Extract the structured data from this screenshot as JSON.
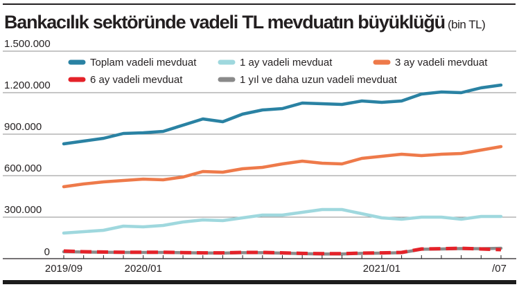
{
  "header": {
    "title": "Bankacılık sektöründe vadeli TL mevduatın büyüklüğü",
    "unit": "(bin TL)"
  },
  "chart_data": {
    "type": "line",
    "title": "Bankacılık sektöründe vadeli TL mevduatın büyüklüğü",
    "subtitle": "(bin TL)",
    "xlabel": "",
    "ylabel": "",
    "ylim": [
      0,
      1500000
    ],
    "grid": true,
    "legend_placement": "top",
    "yticks": [
      {
        "value": 0,
        "label": "0"
      },
      {
        "value": 300000,
        "label": "300.000"
      },
      {
        "value": 600000,
        "label": "600.000"
      },
      {
        "value": 900000,
        "label": "900.000"
      },
      {
        "value": 1200000,
        "label": "1.200.000"
      },
      {
        "value": 1500000,
        "label": "1.500.000"
      }
    ],
    "x": [
      "2019/09",
      "2019/10",
      "2019/11",
      "2019/12",
      "2020/01",
      "2020/02",
      "2020/03",
      "2020/04",
      "2020/05",
      "2020/06",
      "2020/07",
      "2020/08",
      "2020/09",
      "2020/10",
      "2020/11",
      "2020/12",
      "2021/01",
      "2021/02",
      "2021/03",
      "2021/04",
      "2021/05",
      "2021/06",
      "2021/07"
    ],
    "xtick_labels": [
      {
        "index": 0,
        "label": "2019/09"
      },
      {
        "index": 4,
        "label": "2020/01"
      },
      {
        "index": 16,
        "label": "2021/01"
      },
      {
        "index": 22,
        "label": "/07"
      }
    ],
    "series": [
      {
        "name": "Toplam vadeli mevduat",
        "color": "#2a82a3",
        "style": "solid",
        "values": [
          830000,
          850000,
          870000,
          905000,
          910000,
          920000,
          965000,
          1010000,
          990000,
          1045000,
          1075000,
          1085000,
          1125000,
          1120000,
          1115000,
          1140000,
          1130000,
          1140000,
          1190000,
          1205000,
          1200000,
          1235000,
          1255000
        ]
      },
      {
        "name": "1 ay vadeli mevduat",
        "color": "#9fd8de",
        "style": "solid",
        "values": [
          185000,
          195000,
          205000,
          235000,
          230000,
          240000,
          265000,
          280000,
          275000,
          295000,
          315000,
          315000,
          335000,
          355000,
          355000,
          325000,
          295000,
          285000,
          300000,
          300000,
          285000,
          305000,
          305000
        ]
      },
      {
        "name": "3 ay vadeli mevduat",
        "color": "#ee7a4a",
        "style": "solid",
        "values": [
          520000,
          540000,
          555000,
          565000,
          575000,
          570000,
          590000,
          630000,
          625000,
          650000,
          660000,
          685000,
          705000,
          690000,
          685000,
          725000,
          740000,
          755000,
          745000,
          755000,
          760000,
          785000,
          810000
        ]
      },
      {
        "name": "6 ay vadeli mevduat",
        "color": "#e42229",
        "style": "dashed",
        "values": [
          55000,
          50000,
          48000,
          46000,
          46000,
          46000,
          44000,
          42000,
          42000,
          45000,
          45000,
          42000,
          38000,
          36000,
          36000,
          40000,
          42000,
          45000,
          70000,
          72000,
          75000,
          70000,
          65000
        ]
      },
      {
        "name": "1 yıl ve daha uzun vadeli mevduat",
        "color": "#8a8a8a",
        "style": "solid",
        "values": [
          50000,
          48000,
          46000,
          45000,
          45000,
          45000,
          43000,
          41000,
          40000,
          43000,
          43000,
          40000,
          36000,
          34000,
          34000,
          38000,
          40000,
          43000,
          68000,
          70000,
          73000,
          72000,
          75000
        ]
      }
    ],
    "legend": [
      {
        "label": "Toplam vadeli mevduat",
        "color": "#2a82a3"
      },
      {
        "label": "1 ay vadeli mevduat",
        "color": "#9fd8de"
      },
      {
        "label": "3 ay vadeli mevduat",
        "color": "#ee7a4a"
      },
      {
        "label": "6 ay vadeli mevduat",
        "color": "#e42229"
      },
      {
        "label": "1 yıl ve daha uzun vadeli mevduat",
        "color": "#8a8a8a"
      }
    ]
  },
  "colors": {
    "text": "#231f20",
    "grid": "#8c8c8c",
    "axis": "#231f20"
  }
}
